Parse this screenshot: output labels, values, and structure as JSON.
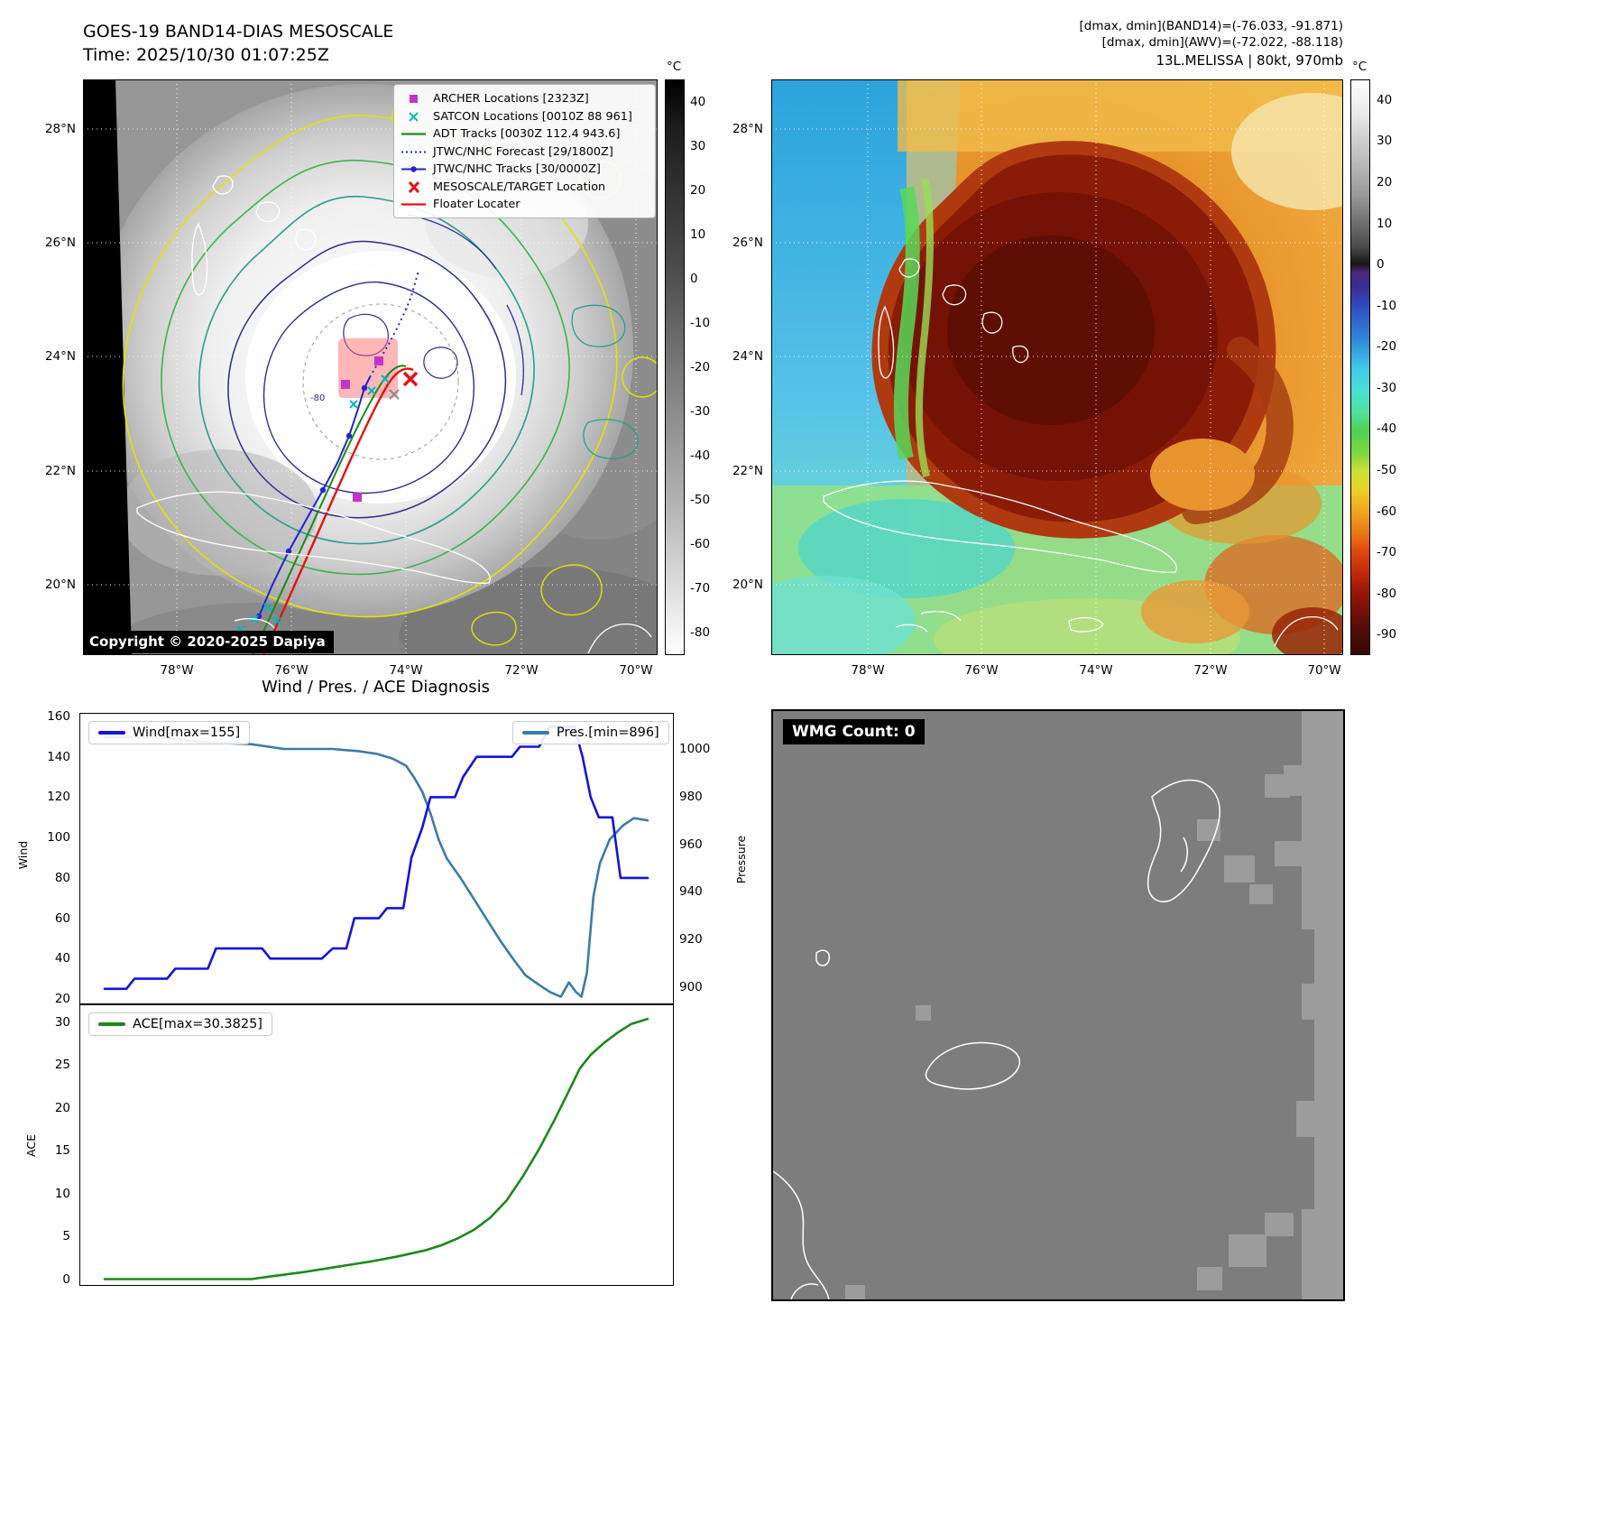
{
  "band14": {
    "title": "GOES-19 BAND14-DIAS MESOSCALE",
    "time_line": "Time: 2025/10/30 01:07:25Z",
    "copyright": "Copyright © 2020-2025 Dapiya",
    "contour_label": "-80",
    "colorbar_unit": "°C",
    "colorbar_ticks": [
      40,
      30,
      20,
      10,
      0,
      -10,
      -20,
      -30,
      -40,
      -50,
      -60,
      -70,
      -80
    ],
    "lat_ticks": [
      "28°N",
      "26°N",
      "24°N",
      "22°N",
      "20°N"
    ],
    "lon_ticks": [
      "78°W",
      "76°W",
      "74°W",
      "72°W",
      "70°W"
    ],
    "legend": [
      {
        "label": "ARCHER Locations [2323Z]",
        "symbol": "square",
        "color": "#c733c7"
      },
      {
        "label": "SATCON Locations [0010Z 88 961]",
        "symbol": "x",
        "color": "#00b8b8"
      },
      {
        "label": "ADT Tracks [0030Z 112.4 943.6]",
        "symbol": "line",
        "color": "#1a8a1a"
      },
      {
        "label": "JTWC/NHC Forecast [29/1800Z]",
        "symbol": "dotted",
        "color": "#2424cc"
      },
      {
        "label": "JTWC/NHC Tracks [30/0000Z]",
        "symbol": "line-dot",
        "color": "#2424cc"
      },
      {
        "label": "MESOSCALE/TARGET Location",
        "symbol": "x-bold",
        "color": "#e81010"
      },
      {
        "label": "Floater Locater",
        "symbol": "line",
        "color": "#e81010"
      }
    ]
  },
  "awv": {
    "header_lines": [
      "[dmax, dmin](BAND14)=(-76.033, -91.871)",
      "[dmax, dmin](AWV)=(-72.022, -88.118)",
      "13L.MELISSA | 80kt, 970mb"
    ],
    "colorbar_unit": "°C",
    "colorbar_ticks": [
      40,
      30,
      20,
      10,
      0,
      -10,
      -20,
      -30,
      -40,
      -50,
      -60,
      -70,
      -80,
      -90
    ],
    "lat_ticks": [
      "28°N",
      "26°N",
      "24°N",
      "22°N",
      "20°N"
    ],
    "lon_ticks": [
      "78°W",
      "76°W",
      "74°W",
      "72°W",
      "70°W"
    ]
  },
  "diagnosis": {
    "title": "Wind / Pres. / ACE Diagnosis",
    "wind_legend": "Wind[max=155]",
    "pres_legend": "Pres.[min=896]",
    "ace_legend": "ACE[max=30.3825]",
    "wind_axis_label": "Wind",
    "pressure_axis_label": "Pressure",
    "ace_axis_label": "ACE",
    "wind_ticks": [
      160,
      140,
      120,
      100,
      80,
      60,
      40,
      20
    ],
    "pressure_ticks": [
      1000,
      980,
      960,
      940,
      920,
      900
    ],
    "ace_ticks": [
      30,
      25,
      20,
      15,
      10,
      5,
      0
    ]
  },
  "wmg": {
    "label": "WMG Count: 0"
  },
  "chart_data": [
    {
      "type": "line",
      "title": "Wind / Pres. / ACE Diagnosis",
      "ylabel_left": "Wind",
      "ylabel_right": "Pressure",
      "ylim_left": [
        20,
        160
      ],
      "ylim_right": [
        890,
        1010
      ],
      "legend_position": "upper-left / upper-right",
      "grid": false,
      "series": [
        {
          "name": "Pres.[min=896]",
          "axis": "right",
          "color": "#3a7ca8",
          "points": [
            [
              0.0,
              1005
            ],
            [
              0.1,
              1005
            ],
            [
              0.17,
              1003
            ],
            [
              0.27,
              1002
            ],
            [
              0.33,
              1000
            ],
            [
              0.42,
              1000
            ],
            [
              0.47,
              999
            ],
            [
              0.5,
              998
            ],
            [
              0.53,
              996
            ],
            [
              0.555,
              993
            ],
            [
              0.57,
              988
            ],
            [
              0.585,
              982
            ],
            [
              0.6,
              973
            ],
            [
              0.615,
              962
            ],
            [
              0.63,
              954
            ],
            [
              0.655,
              946
            ],
            [
              0.68,
              937
            ],
            [
              0.705,
              928
            ],
            [
              0.73,
              919
            ],
            [
              0.755,
              911
            ],
            [
              0.775,
              905
            ],
            [
              0.8,
              901
            ],
            [
              0.82,
              898
            ],
            [
              0.84,
              896
            ],
            [
              0.855,
              902
            ],
            [
              0.868,
              898
            ],
            [
              0.878,
              896
            ],
            [
              0.888,
              906
            ],
            [
              0.9,
              938
            ],
            [
              0.912,
              952
            ],
            [
              0.93,
              962
            ],
            [
              0.955,
              968
            ],
            [
              0.975,
              971
            ],
            [
              1.0,
              970
            ]
          ]
        },
        {
          "name": "Wind[max=155]",
          "axis": "left",
          "color": "#1414dc",
          "points": [
            [
              0.0,
              25
            ],
            [
              0.04,
              25
            ],
            [
              0.055,
              30
            ],
            [
              0.1,
              30
            ],
            [
              0.115,
              30
            ],
            [
              0.13,
              35
            ],
            [
              0.19,
              35
            ],
            [
              0.205,
              45
            ],
            [
              0.29,
              45
            ],
            [
              0.305,
              40
            ],
            [
              0.4,
              40
            ],
            [
              0.42,
              45
            ],
            [
              0.445,
              45
            ],
            [
              0.46,
              60
            ],
            [
              0.505,
              60
            ],
            [
              0.52,
              65
            ],
            [
              0.55,
              65
            ],
            [
              0.565,
              90
            ],
            [
              0.585,
              105
            ],
            [
              0.6,
              120
            ],
            [
              0.645,
              120
            ],
            [
              0.66,
              130
            ],
            [
              0.685,
              140
            ],
            [
              0.75,
              140
            ],
            [
              0.765,
              145
            ],
            [
              0.8,
              145
            ],
            [
              0.82,
              155
            ],
            [
              0.865,
              155
            ],
            [
              0.88,
              140
            ],
            [
              0.895,
              120
            ],
            [
              0.91,
              110
            ],
            [
              0.935,
              110
            ],
            [
              0.95,
              80
            ],
            [
              1.0,
              80
            ]
          ]
        }
      ]
    },
    {
      "type": "line",
      "ylabel": "ACE",
      "ylim": [
        0,
        30.5
      ],
      "grid": false,
      "series": [
        {
          "name": "ACE[max=30.3825]",
          "color": "#1a8a1a",
          "points": [
            [
              0.0,
              0.05
            ],
            [
              0.27,
              0.05
            ],
            [
              0.31,
              0.4
            ],
            [
              0.37,
              0.9
            ],
            [
              0.43,
              1.5
            ],
            [
              0.49,
              2.1
            ],
            [
              0.54,
              2.7
            ],
            [
              0.59,
              3.4
            ],
            [
              0.62,
              4.0
            ],
            [
              0.65,
              4.8
            ],
            [
              0.68,
              5.8
            ],
            [
              0.71,
              7.2
            ],
            [
              0.74,
              9.2
            ],
            [
              0.77,
              12.0
            ],
            [
              0.8,
              15.2
            ],
            [
              0.83,
              18.8
            ],
            [
              0.855,
              22.0
            ],
            [
              0.875,
              24.6
            ],
            [
              0.895,
              26.2
            ],
            [
              0.92,
              27.6
            ],
            [
              0.945,
              28.8
            ],
            [
              0.97,
              29.8
            ],
            [
              1.0,
              30.38
            ]
          ]
        }
      ]
    }
  ]
}
